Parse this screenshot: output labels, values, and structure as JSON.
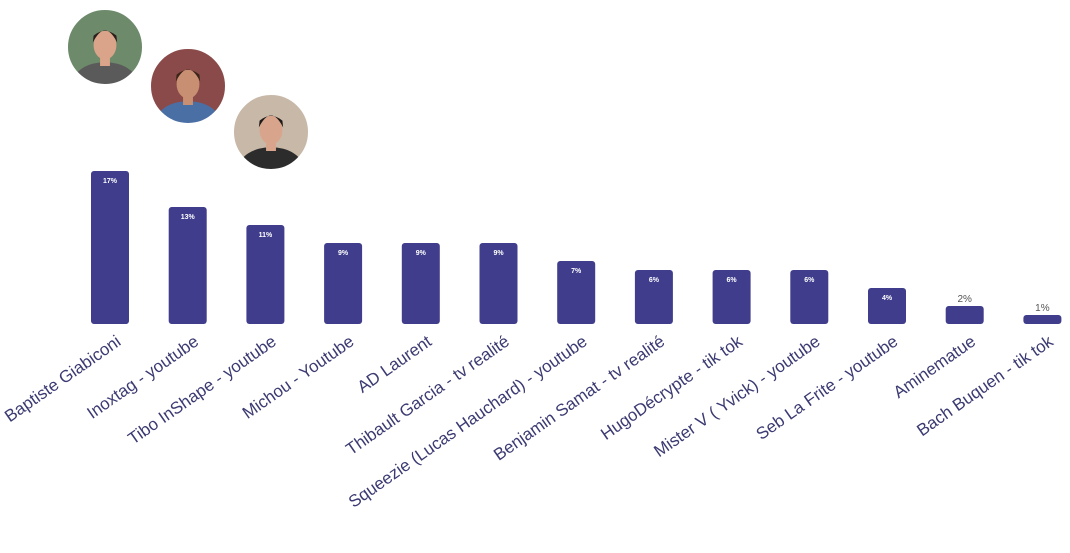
{
  "chart_data": {
    "type": "bar",
    "categories": [
      "Baptiste Giabiconi",
      "Inoxtag - youtube",
      "Tibo InShape - youtube",
      "Michou - Youtube",
      "AD Laurent",
      "Thibault Garcia - tv realité",
      "Squeezie (Lucas Hauchard) - youtube",
      "Benjamin Samat - tv realité",
      "HugoDécrypte - tik tok",
      "Mister V ( Yvick) - youtube",
      "Seb La Frite - youtube",
      "Aminematue",
      "Bach Buquen - tik tok"
    ],
    "values": [
      17,
      13,
      11,
      9,
      9,
      9,
      7,
      6,
      6,
      6,
      4,
      2,
      1
    ],
    "value_labels": [
      "17%",
      "13%",
      "11%",
      "9%",
      "9%",
      "9%",
      "7%",
      "6%",
      "6%",
      "6%",
      "4%",
      "2%",
      "1%"
    ],
    "bar_color": "#3f3d8c",
    "title": "",
    "xlabel": "",
    "ylabel": "",
    "ylim": [
      0,
      17
    ],
    "grid": false,
    "legend": "none",
    "avatars": [
      {
        "icon": "person-photo-icon",
        "skin": "#d9a48a",
        "hair": "#2a1f1a",
        "shirt": "#5a5a5a",
        "bg": "#6d8a6a"
      },
      {
        "icon": "person-photo-icon",
        "skin": "#c98f73",
        "hair": "#3a2418",
        "shirt": "#4a6fa5",
        "bg": "#8a4a4a"
      },
      {
        "icon": "person-photo-icon",
        "skin": "#d8a58c",
        "hair": "#1e1a18",
        "shirt": "#2c2c2c",
        "bg": "#c8b8a8"
      }
    ]
  }
}
